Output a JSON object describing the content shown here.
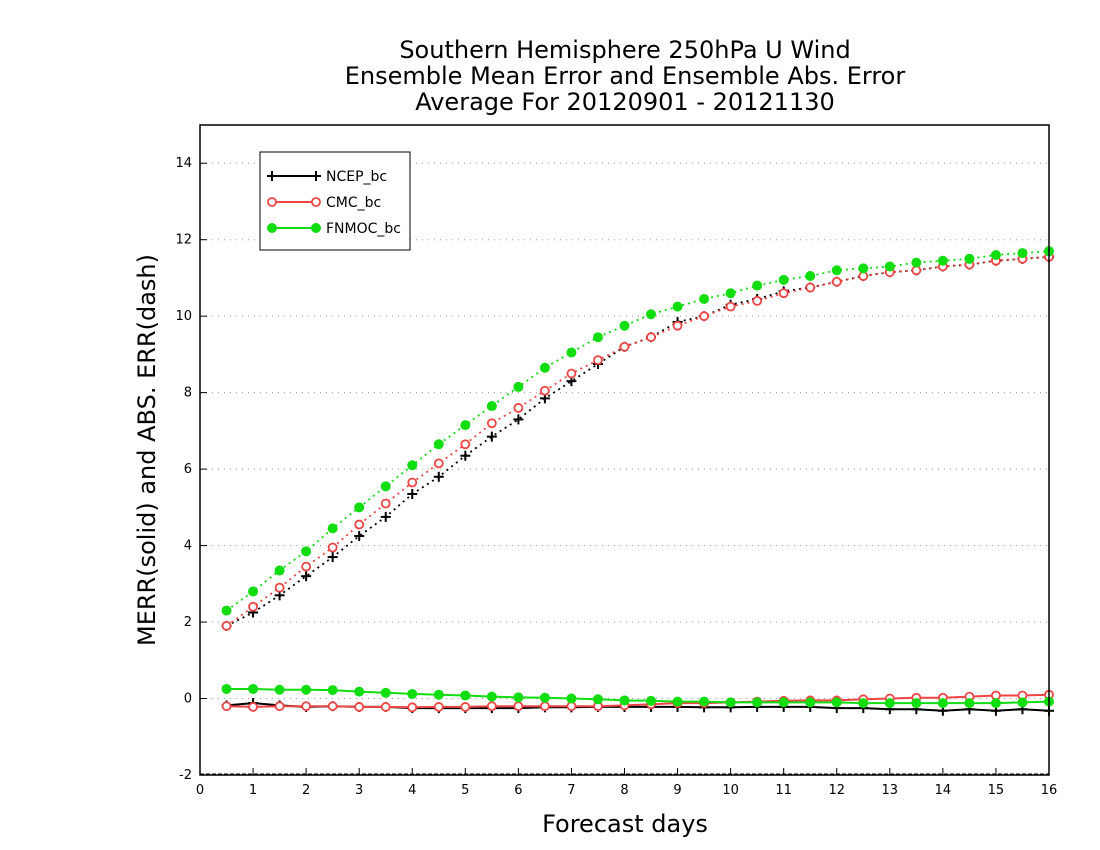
{
  "chart_data": {
    "type": "line",
    "title_lines": [
      "Southern Hemisphere 250hPa U Wind",
      "Ensemble Mean Error and Ensemble Abs. Error",
      "Average For 20120901 - 20121130"
    ],
    "xlabel": "Forecast days",
    "ylabel": "MERR(solid) and ABS. ERR(dash)",
    "xlim": [
      0,
      16
    ],
    "ylim": [
      -2,
      15
    ],
    "xticks": [
      0,
      1,
      2,
      3,
      4,
      5,
      6,
      7,
      8,
      9,
      10,
      11,
      12,
      13,
      14,
      15,
      16
    ],
    "yticks": [
      -2,
      0,
      2,
      4,
      6,
      8,
      10,
      12,
      14
    ],
    "xtick_labels": [
      "0",
      "1",
      "2",
      "3",
      "4",
      "5",
      "6",
      "7",
      "8",
      "9",
      "10",
      "11",
      "12",
      "13",
      "14",
      "15",
      "16"
    ],
    "ytick_labels": [
      "-2",
      "0",
      "2",
      "4",
      "6",
      "8",
      "10",
      "12",
      "14"
    ],
    "grid": "horizontal dotted",
    "legend_position": "top-left",
    "x": [
      0.5,
      1,
      1.5,
      2,
      2.5,
      3,
      3.5,
      4,
      4.5,
      5,
      5.5,
      6,
      6.5,
      7,
      7.5,
      8,
      8.5,
      9,
      9.5,
      10,
      10.5,
      11,
      11.5,
      12,
      12.5,
      13,
      13.5,
      14,
      14.5,
      15,
      15.5,
      16
    ],
    "series": [
      {
        "name": "NCEP_bc",
        "color": "#000000",
        "marker": "plus",
        "merr": [
          -0.18,
          -0.12,
          -0.18,
          -0.22,
          -0.2,
          -0.22,
          -0.22,
          -0.25,
          -0.25,
          -0.25,
          -0.25,
          -0.25,
          -0.23,
          -0.23,
          -0.22,
          -0.22,
          -0.22,
          -0.22,
          -0.23,
          -0.23,
          -0.22,
          -0.22,
          -0.22,
          -0.25,
          -0.25,
          -0.28,
          -0.28,
          -0.32,
          -0.28,
          -0.32,
          -0.28,
          -0.32
        ],
        "abs_err": [
          1.9,
          2.25,
          2.7,
          3.2,
          3.7,
          4.25,
          4.75,
          5.35,
          5.8,
          6.35,
          6.85,
          7.3,
          7.85,
          8.3,
          8.75,
          9.2,
          9.45,
          9.85,
          10.0,
          10.3,
          10.45,
          10.65,
          10.75,
          10.9,
          11.05,
          11.15,
          11.2,
          11.3,
          11.35,
          11.45,
          11.5,
          11.55
        ]
      },
      {
        "name": "CMC_bc",
        "color": "#ee4444",
        "marker": "circle-open",
        "merr": [
          -0.2,
          -0.22,
          -0.2,
          -0.2,
          -0.2,
          -0.22,
          -0.22,
          -0.23,
          -0.22,
          -0.22,
          -0.2,
          -0.2,
          -0.2,
          -0.2,
          -0.2,
          -0.18,
          -0.15,
          -0.12,
          -0.12,
          -0.1,
          -0.08,
          -0.06,
          -0.05,
          -0.05,
          -0.02,
          0.0,
          0.02,
          0.02,
          0.05,
          0.08,
          0.08,
          0.1
        ],
        "abs_err": [
          1.9,
          2.4,
          2.9,
          3.45,
          3.95,
          4.55,
          5.1,
          5.65,
          6.15,
          6.65,
          7.2,
          7.6,
          8.05,
          8.5,
          8.85,
          9.2,
          9.45,
          9.75,
          10.0,
          10.25,
          10.4,
          10.6,
          10.75,
          10.9,
          11.05,
          11.15,
          11.2,
          11.3,
          11.35,
          11.45,
          11.5,
          11.55
        ]
      },
      {
        "name": "FNMOC_bc",
        "color": "#11dd11",
        "marker": "circle-filled",
        "merr": [
          0.25,
          0.25,
          0.23,
          0.23,
          0.22,
          0.18,
          0.15,
          0.12,
          0.1,
          0.08,
          0.05,
          0.03,
          0.02,
          0.0,
          -0.02,
          -0.05,
          -0.06,
          -0.08,
          -0.08,
          -0.1,
          -0.1,
          -0.1,
          -0.1,
          -0.1,
          -0.12,
          -0.12,
          -0.12,
          -0.12,
          -0.12,
          -0.12,
          -0.1,
          -0.08
        ],
        "abs_err": [
          2.3,
          2.8,
          3.35,
          3.85,
          4.45,
          5.0,
          5.55,
          6.1,
          6.65,
          7.15,
          7.65,
          8.15,
          8.65,
          9.05,
          9.45,
          9.75,
          10.05,
          10.25,
          10.45,
          10.6,
          10.8,
          10.95,
          11.05,
          11.2,
          11.25,
          11.3,
          11.4,
          11.45,
          11.5,
          11.6,
          11.65,
          11.7
        ]
      }
    ]
  }
}
